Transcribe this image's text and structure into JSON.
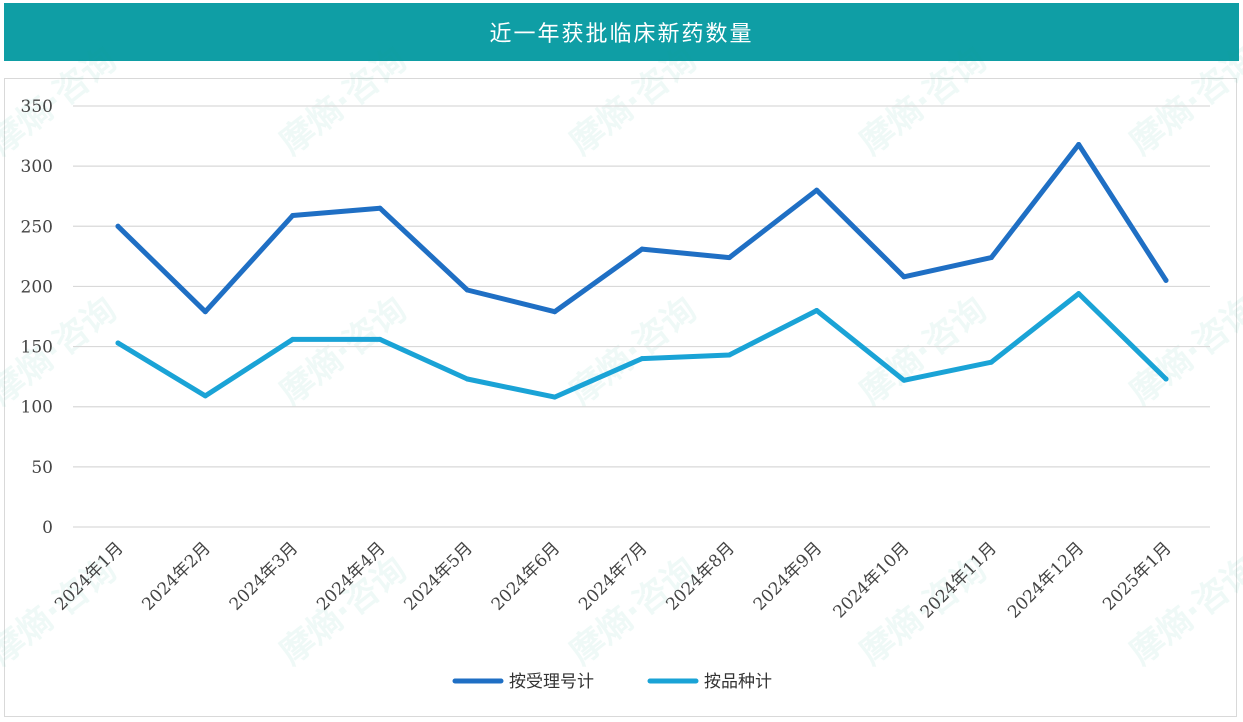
{
  "header": {
    "title": "近一年获批临床新药数量"
  },
  "chart_data": {
    "type": "line",
    "title": "近一年获批临床新药数量",
    "xlabel": "",
    "ylabel": "",
    "categories": [
      "2024年1月",
      "2024年2月",
      "2024年3月",
      "2024年4月",
      "2024年5月",
      "2024年6月",
      "2024年7月",
      "2024年8月",
      "2024年9月",
      "2024年10月",
      "2024年11月",
      "2024年12月",
      "2025年1月"
    ],
    "series": [
      {
        "name": "按受理号计",
        "color": "#1f6fc4",
        "values": [
          250,
          179,
          259,
          265,
          197,
          179,
          231,
          224,
          280,
          208,
          224,
          318,
          205
        ]
      },
      {
        "name": "按品种计",
        "color": "#1aa3d6",
        "values": [
          153,
          109,
          156,
          156,
          123,
          108,
          140,
          143,
          180,
          122,
          137,
          194,
          123
        ]
      }
    ],
    "ylim": [
      0,
      350
    ],
    "yticks": [
      "0",
      "50",
      "100",
      "150",
      "200",
      "250",
      "300",
      "350"
    ],
    "grid": true,
    "legend_position": "bottom-center"
  },
  "watermark": {
    "text": "摩熵·咨询"
  }
}
